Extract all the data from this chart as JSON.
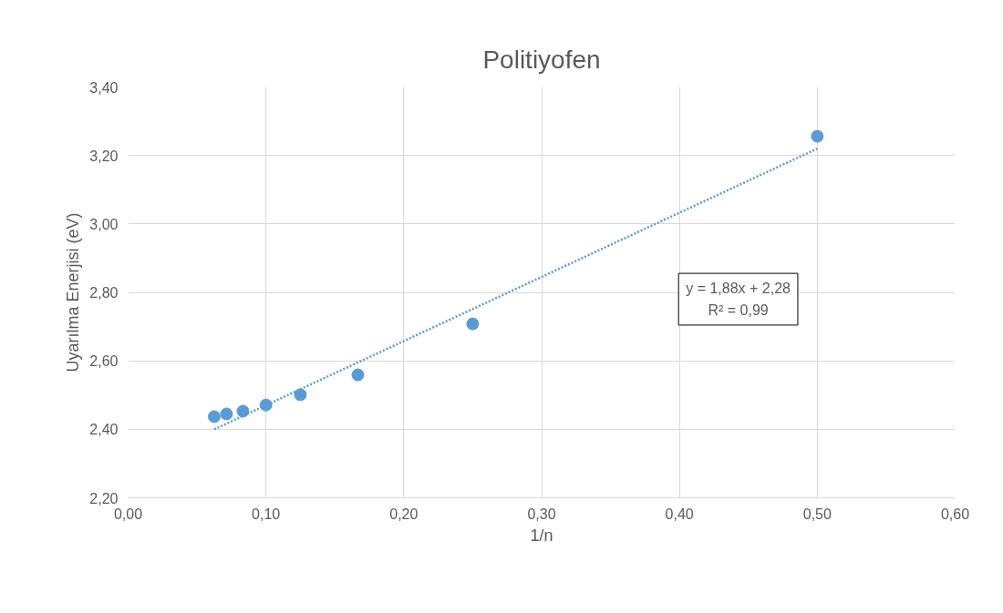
{
  "chart_data": {
    "type": "scatter",
    "title": "Politiyofen",
    "xlabel": "1/n",
    "ylabel": "Uyarılma Enerjisi (eV)",
    "x": [
      0.0625,
      0.0714,
      0.0833,
      0.1,
      0.125,
      0.1667,
      0.25,
      0.5
    ],
    "series": [
      {
        "color": "#5b9bd5",
        "marker": "circle",
        "values": [
          2.437,
          2.445,
          2.453,
          2.471,
          2.501,
          2.559,
          2.708,
          3.256
        ]
      },
      {
        "type": "line",
        "color": "#5b9bd5",
        "line_style": "dotted",
        "marker": "none",
        "x": [
          0.0625,
          0.5
        ],
        "values": [
          2.4,
          3.22
        ]
      }
    ],
    "annotations": [
      "y = 1,88x + 2,28\nR² = 0,99"
    ],
    "xlim": [
      0,
      0.6
    ],
    "ylim": [
      2.2,
      3.4
    ],
    "xticks": [
      {
        "value": 0,
        "label": "0,00"
      },
      {
        "value": 0.1,
        "label": "0,10"
      },
      {
        "value": 0.2,
        "label": "0,20"
      },
      {
        "value": 0.3,
        "label": "0,30"
      },
      {
        "value": 0.4,
        "label": "0,40"
      },
      {
        "value": 0.5,
        "label": "0,50"
      },
      {
        "value": 0.6,
        "label": "0,60"
      }
    ],
    "yticks": [
      {
        "value": 2.2,
        "label": "2,20"
      },
      {
        "value": 2.4,
        "label": "2,40"
      },
      {
        "value": 2.6,
        "label": "2,60"
      },
      {
        "value": 2.8,
        "label": "2,80"
      },
      {
        "value": 3.0,
        "label": "3,00"
      },
      {
        "value": 3.2,
        "label": "3,20"
      },
      {
        "value": 3.4,
        "label": "3,40"
      }
    ],
    "grid": true
  }
}
